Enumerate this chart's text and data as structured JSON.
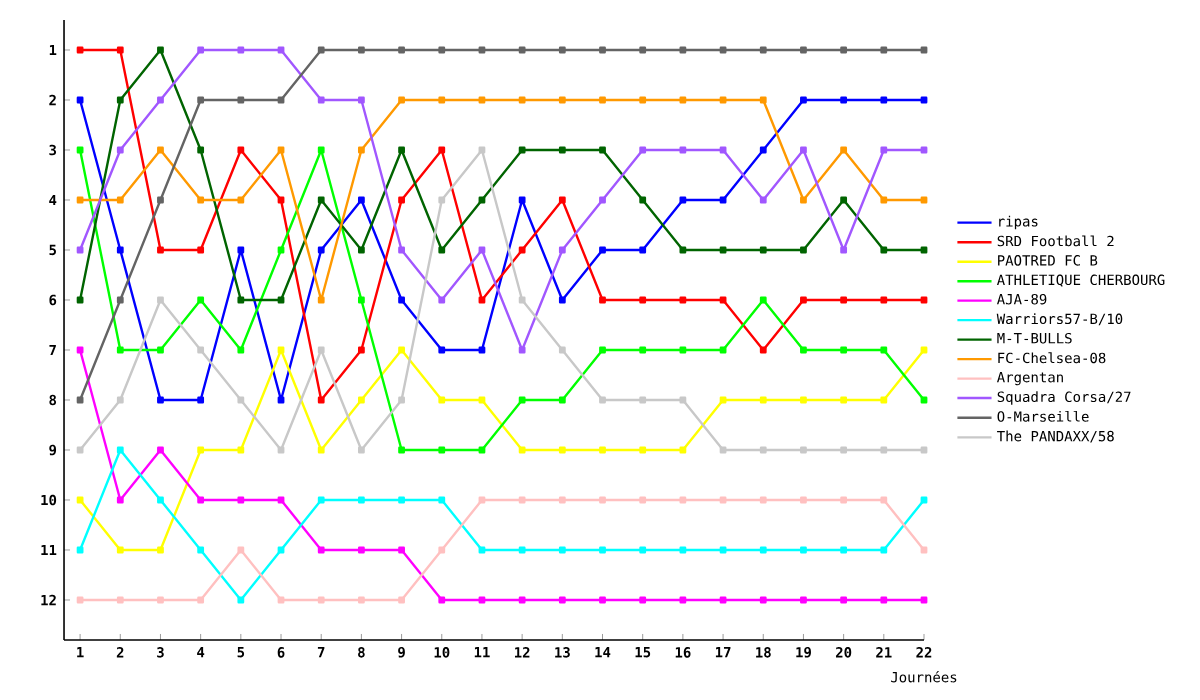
{
  "chart_data": {
    "type": "line",
    "xlabel": "Journées",
    "marker": "square",
    "legend": "right",
    "grid": false,
    "x": [
      1,
      2,
      3,
      4,
      5,
      6,
      7,
      8,
      9,
      10,
      11,
      12,
      13,
      14,
      15,
      16,
      17,
      18,
      19,
      20,
      21,
      22
    ],
    "xlim": [
      0.6,
      22
    ],
    "ylim": [
      12.8,
      0.4
    ],
    "xticks": [
      1,
      2,
      3,
      4,
      5,
      6,
      7,
      8,
      9,
      10,
      11,
      12,
      13,
      14,
      15,
      16,
      17,
      18,
      19,
      20,
      21,
      22
    ],
    "yticks": [
      1,
      2,
      3,
      4,
      5,
      6,
      7,
      8,
      9,
      10,
      11,
      12
    ],
    "series": [
      {
        "name": "ripas",
        "color": "#0000ff",
        "values": [
          2,
          5,
          8,
          8,
          5,
          8,
          5,
          4,
          6,
          7,
          7,
          4,
          6,
          5,
          5,
          4,
          4,
          3,
          2,
          2,
          2,
          2
        ]
      },
      {
        "name": "SRD Football 2",
        "color": "#ff0000",
        "values": [
          1,
          1,
          5,
          5,
          3,
          4,
          8,
          7,
          4,
          3,
          6,
          5,
          4,
          6,
          6,
          6,
          6,
          7,
          6,
          6,
          6,
          6
        ]
      },
      {
        "name": "PAOTRED FC B",
        "color": "#ffff00",
        "values": [
          10,
          11,
          11,
          9,
          9,
          7,
          9,
          8,
          7,
          8,
          8,
          9,
          9,
          9,
          9,
          9,
          8,
          8,
          8,
          8,
          8,
          7
        ]
      },
      {
        "name": "ATHLETIQUE CHERBOURG",
        "color": "#00ff00",
        "values": [
          3,
          7,
          7,
          6,
          7,
          5,
          3,
          6,
          9,
          9,
          9,
          8,
          8,
          7,
          7,
          7,
          7,
          6,
          7,
          7,
          7,
          8
        ]
      },
      {
        "name": "AJA-89",
        "color": "#ff00ff",
        "values": [
          7,
          10,
          9,
          10,
          10,
          10,
          11,
          11,
          11,
          12,
          12,
          12,
          12,
          12,
          12,
          12,
          12,
          12,
          12,
          12,
          12,
          12
        ]
      },
      {
        "name": "Warriors57-B/10",
        "color": "#00ffff",
        "values": [
          11,
          9,
          10,
          11,
          12,
          11,
          10,
          10,
          10,
          10,
          11,
          11,
          11,
          11,
          11,
          11,
          11,
          11,
          11,
          11,
          11,
          10
        ]
      },
      {
        "name": "M-T-BULLS",
        "color": "#006400",
        "values": [
          6,
          2,
          1,
          3,
          6,
          6,
          4,
          5,
          3,
          5,
          4,
          3,
          3,
          3,
          4,
          5,
          5,
          5,
          5,
          4,
          5,
          5
        ]
      },
      {
        "name": "FC-Chelsea-08",
        "color": "#ff9900",
        "values": [
          4,
          4,
          3,
          4,
          4,
          3,
          6,
          3,
          2,
          2,
          2,
          2,
          2,
          2,
          2,
          2,
          2,
          2,
          4,
          3,
          4,
          4
        ]
      },
      {
        "name": "Argentan",
        "color": "#ffc0c0",
        "values": [
          12,
          12,
          12,
          12,
          11,
          12,
          12,
          12,
          12,
          11,
          10,
          10,
          10,
          10,
          10,
          10,
          10,
          10,
          10,
          10,
          10,
          11
        ]
      },
      {
        "name": "Squadra Corsa/27",
        "color": "#a157ff",
        "values": [
          5,
          3,
          2,
          1,
          1,
          1,
          2,
          2,
          5,
          6,
          5,
          7,
          5,
          4,
          3,
          3,
          3,
          4,
          3,
          5,
          3,
          3
        ]
      },
      {
        "name": "O-Marseille",
        "color": "#646464",
        "values": [
          8,
          6,
          4,
          2,
          2,
          2,
          1,
          1,
          1,
          1,
          1,
          1,
          1,
          1,
          1,
          1,
          1,
          1,
          1,
          1,
          1,
          1
        ]
      },
      {
        "name": "The PANDAXX/58",
        "color": "#c8c8c8",
        "values": [
          9,
          8,
          6,
          7,
          8,
          9,
          7,
          9,
          8,
          4,
          3,
          6,
          7,
          8,
          8,
          8,
          9,
          9,
          9,
          9,
          9,
          9
        ]
      }
    ]
  }
}
